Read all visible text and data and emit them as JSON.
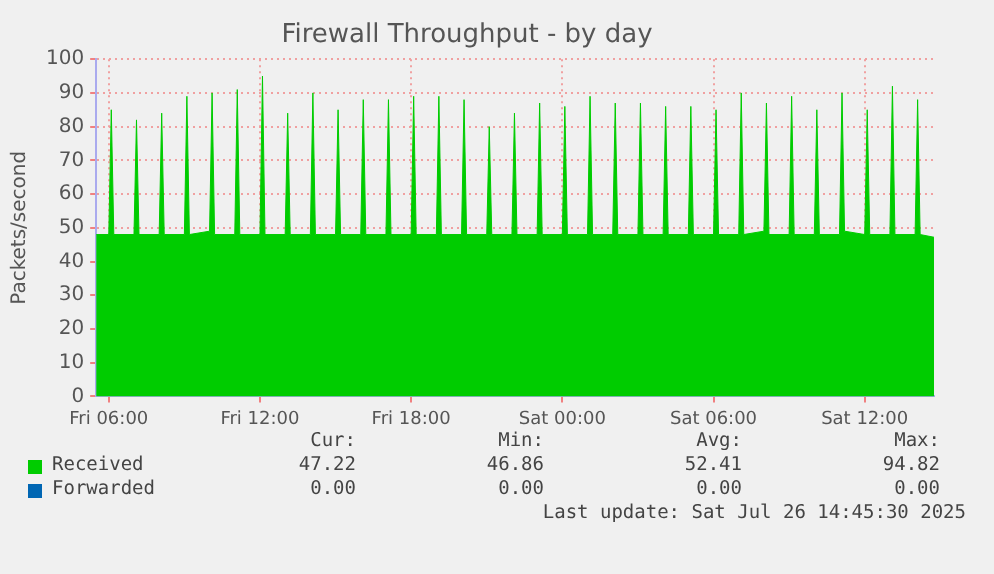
{
  "chart_data": {
    "type": "area",
    "title": "Firewall Throughput - by day",
    "ylabel": "Packets/second",
    "x": [
      "2025-07-25T05:30",
      "2025-07-25T06:00",
      "2025-07-25T06:06",
      "2025-07-25T06:12",
      "2025-07-25T07:00",
      "2025-07-25T07:06",
      "2025-07-25T07:12",
      "2025-07-25T08:00",
      "2025-07-25T08:06",
      "2025-07-25T08:12",
      "2025-07-25T09:00",
      "2025-07-25T09:06",
      "2025-07-25T09:12",
      "2025-07-25T10:00",
      "2025-07-25T10:06",
      "2025-07-25T10:12",
      "2025-07-25T11:00",
      "2025-07-25T11:06",
      "2025-07-25T11:12",
      "2025-07-25T12:00",
      "2025-07-25T12:06",
      "2025-07-25T12:12",
      "2025-07-25T13:00",
      "2025-07-25T13:06",
      "2025-07-25T13:12",
      "2025-07-25T14:00",
      "2025-07-25T14:06",
      "2025-07-25T14:12",
      "2025-07-25T15:00",
      "2025-07-25T15:06",
      "2025-07-25T15:12",
      "2025-07-25T16:00",
      "2025-07-25T16:06",
      "2025-07-25T16:12",
      "2025-07-25T17:00",
      "2025-07-25T17:06",
      "2025-07-25T17:12",
      "2025-07-25T18:00",
      "2025-07-25T18:06",
      "2025-07-25T18:12",
      "2025-07-25T19:00",
      "2025-07-25T19:06",
      "2025-07-25T19:12",
      "2025-07-25T20:00",
      "2025-07-25T20:06",
      "2025-07-25T20:12",
      "2025-07-25T21:00",
      "2025-07-25T21:06",
      "2025-07-25T21:12",
      "2025-07-25T22:00",
      "2025-07-25T22:06",
      "2025-07-25T22:12",
      "2025-07-25T23:00",
      "2025-07-25T23:06",
      "2025-07-25T23:12",
      "2025-07-26T00:00",
      "2025-07-26T00:06",
      "2025-07-26T00:12",
      "2025-07-26T01:00",
      "2025-07-26T01:06",
      "2025-07-26T01:12",
      "2025-07-26T02:00",
      "2025-07-26T02:06",
      "2025-07-26T02:12",
      "2025-07-26T03:00",
      "2025-07-26T03:06",
      "2025-07-26T03:12",
      "2025-07-26T04:00",
      "2025-07-26T04:06",
      "2025-07-26T04:12",
      "2025-07-26T05:00",
      "2025-07-26T05:06",
      "2025-07-26T05:12",
      "2025-07-26T06:00",
      "2025-07-26T06:06",
      "2025-07-26T06:12",
      "2025-07-26T07:00",
      "2025-07-26T07:06",
      "2025-07-26T07:12",
      "2025-07-26T08:00",
      "2025-07-26T08:06",
      "2025-07-26T08:12",
      "2025-07-26T09:00",
      "2025-07-26T09:06",
      "2025-07-26T09:12",
      "2025-07-26T10:00",
      "2025-07-26T10:06",
      "2025-07-26T10:12",
      "2025-07-26T11:00",
      "2025-07-26T11:06",
      "2025-07-26T11:12",
      "2025-07-26T12:00",
      "2025-07-26T12:06",
      "2025-07-26T12:12",
      "2025-07-26T13:00",
      "2025-07-26T13:06",
      "2025-07-26T13:12",
      "2025-07-26T14:00",
      "2025-07-26T14:06",
      "2025-07-26T14:12",
      "2025-07-26T14:45"
    ],
    "series": [
      {
        "name": "Received",
        "color": "#00cc00",
        "values": [
          48,
          48,
          85,
          48,
          48,
          82,
          48,
          48,
          84,
          48,
          48,
          89,
          48,
          49,
          90,
          48,
          48,
          91,
          48,
          48,
          95,
          48,
          48,
          84,
          48,
          48,
          90,
          48,
          48,
          85,
          48,
          48,
          88,
          48,
          48,
          88,
          48,
          48,
          89,
          48,
          48,
          89,
          48,
          48,
          88,
          48,
          48,
          80,
          48,
          48,
          84,
          48,
          48,
          87,
          48,
          48,
          86,
          48,
          48,
          89,
          48,
          48,
          87,
          48,
          48,
          87,
          48,
          48,
          86,
          48,
          48,
          86,
          48,
          48,
          85,
          48,
          48,
          90,
          48,
          49,
          87,
          48,
          48,
          89,
          48,
          48,
          85,
          48,
          48,
          90,
          49,
          48,
          85,
          48,
          48,
          92,
          48,
          48,
          88,
          48,
          47.2
        ]
      },
      {
        "name": "Forwarded",
        "color": "#0066b3",
        "values": [
          null,
          null,
          null,
          null,
          null,
          null,
          null,
          null,
          null,
          null,
          null,
          null,
          null,
          null,
          null,
          null,
          null,
          null,
          null,
          null,
          null,
          null,
          null,
          null,
          null,
          null,
          null,
          null,
          null,
          null,
          null,
          null,
          null,
          null,
          null,
          null,
          null,
          null,
          null,
          null,
          null,
          null,
          null,
          null,
          null,
          null,
          null,
          null,
          null,
          null,
          null,
          null,
          null,
          null,
          null,
          null,
          null,
          null,
          null,
          null,
          null,
          null,
          null,
          null,
          null,
          null,
          null,
          null,
          null,
          null,
          null,
          null,
          null,
          null,
          null,
          null,
          null,
          null,
          null,
          null,
          null,
          null,
          null,
          null,
          null,
          null,
          null,
          null,
          null,
          null,
          null,
          null,
          null,
          null,
          null,
          null,
          null,
          null,
          null,
          null,
          null
        ]
      }
    ],
    "xlim": [
      "2025-07-25T05:30",
      "2025-07-26T14:45"
    ],
    "xticks": [
      {
        "value": "2025-07-25T06:00",
        "label": "Fri 06:00"
      },
      {
        "value": "2025-07-25T12:00",
        "label": "Fri 12:00"
      },
      {
        "value": "2025-07-25T18:00",
        "label": "Fri 18:00"
      },
      {
        "value": "2025-07-26T00:00",
        "label": "Sat 00:00"
      },
      {
        "value": "2025-07-26T06:00",
        "label": "Sat 06:00"
      },
      {
        "value": "2025-07-26T12:00",
        "label": "Sat 12:00"
      }
    ],
    "ylim": [
      0,
      100
    ],
    "yticks": [
      0,
      10,
      20,
      30,
      40,
      50,
      60,
      70,
      80,
      90,
      100
    ],
    "grid": true,
    "legend": "bottom left",
    "marker": "none",
    "annotations": [
      "Cur:",
      "Min:",
      "Avg:",
      "Max:",
      "47.22",
      "46.86",
      "52.41",
      "94.82",
      "0.00",
      "0.00",
      "0.00",
      "0.00",
      "Last update: Sat Jul 26 14:45:30 2025"
    ]
  }
}
